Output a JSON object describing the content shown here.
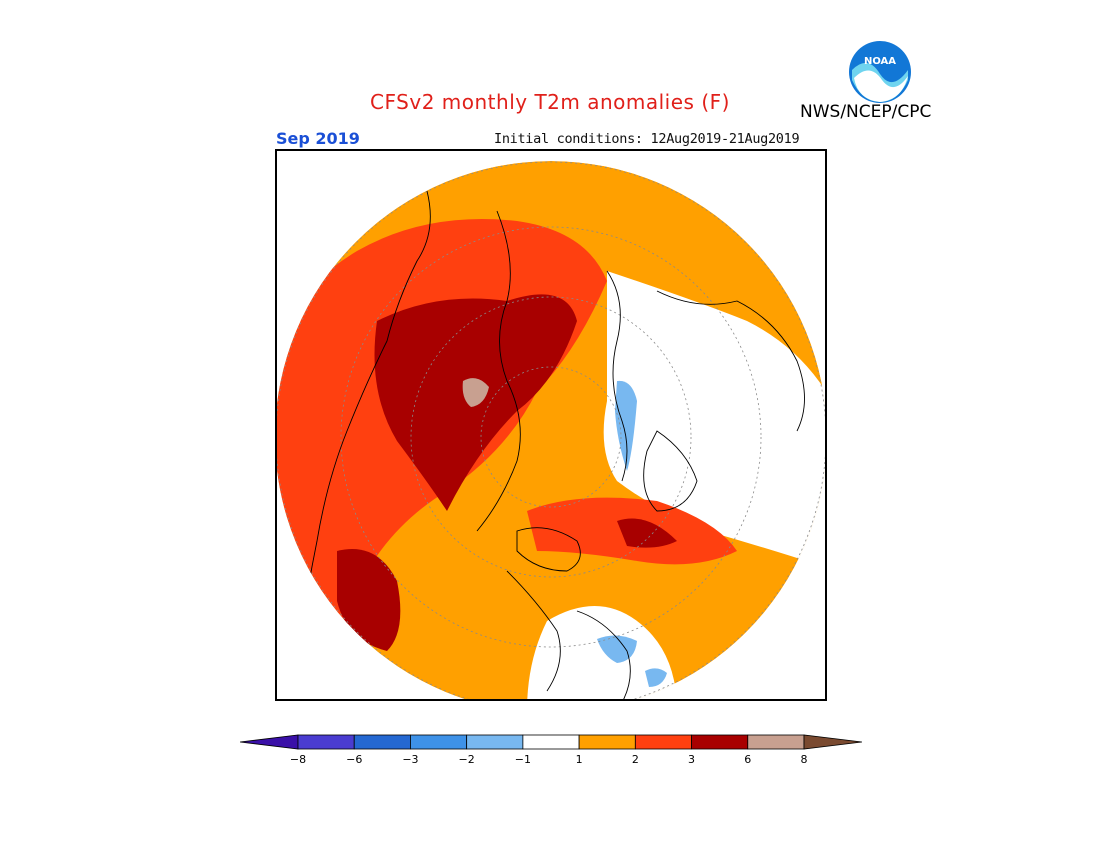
{
  "header": {
    "title": "CFSv2 monthly T2m anomalies (F)",
    "agency": "NWS/NCEP/CPC",
    "logo_text": "NOAA",
    "valid_month": "Sep 2019",
    "initial_conditions": "Initial conditions: 12Aug2019-21Aug2019"
  },
  "colors": {
    "title": "#e0201a",
    "month": "#1a4fd6",
    "logo_blue": "#1277d6",
    "logo_cyan": "#6fd4ef"
  },
  "map": {
    "projection": "north-polar-stereographic",
    "variable": "2m temperature anomaly",
    "units": "F"
  },
  "colorbar": {
    "labels": [
      "-8",
      "-6",
      "-3",
      "-2",
      "-1",
      "1",
      "2",
      "3",
      "6",
      "8"
    ],
    "colors": [
      "#3a10a8",
      "#4a3cd0",
      "#2468d2",
      "#3e92e8",
      "#78b8f0",
      "#ffffff",
      "#ffa000",
      "#ff4010",
      "#a80000",
      "#c8a090",
      "#7a4a30"
    ],
    "extend": "both"
  }
}
